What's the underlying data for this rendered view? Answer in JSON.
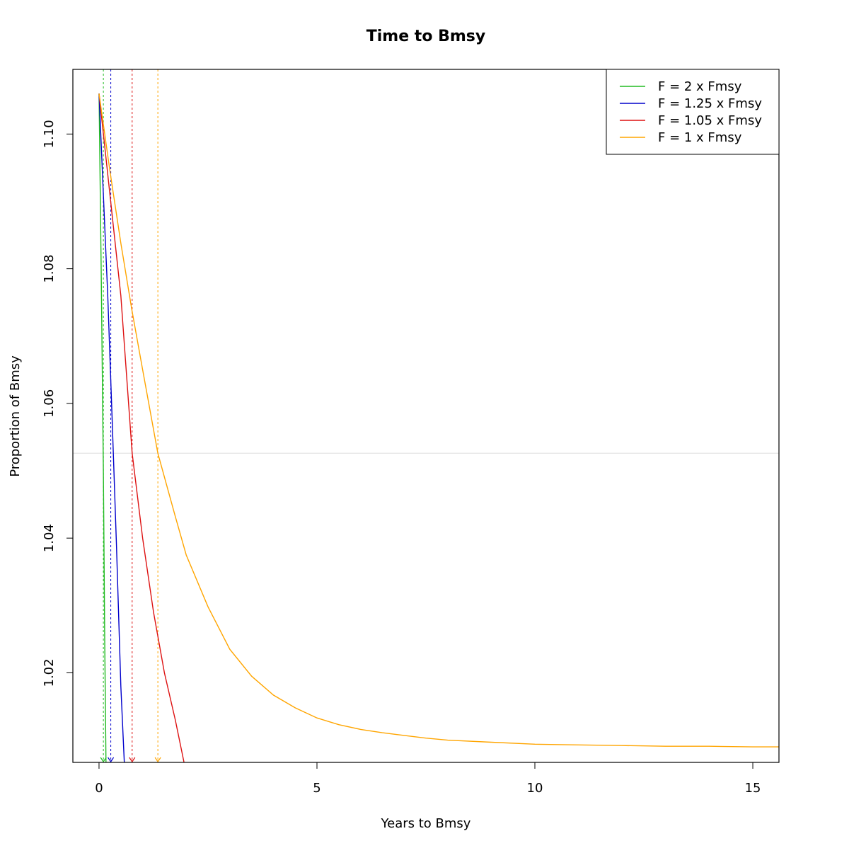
{
  "chart_data": {
    "type": "line",
    "title": "Time to Bmsy",
    "xlabel": "Years to Bmsy",
    "ylabel": "Proportion of Bmsy",
    "xlim": [
      -0.6,
      15.6
    ],
    "ylim": [
      1.0067,
      1.1096
    ],
    "xticks": [
      0,
      5,
      10,
      15
    ],
    "xtick_labels": [
      "0",
      "5",
      "10",
      "15"
    ],
    "yticks": [
      1.02,
      1.04,
      1.06,
      1.08,
      1.1
    ],
    "ytick_labels": [
      "1.02",
      "1.04",
      "1.06",
      "1.08",
      "1.10"
    ],
    "grid": false,
    "legend_position": "top-right",
    "reference_line": {
      "y": 1.0526,
      "color": "#dddddd"
    },
    "series": [
      {
        "name": "F = 2 x Fmsy",
        "color": "#22bb22",
        "x": [
          0.0,
          0.05,
          0.1,
          0.13,
          0.16
        ],
        "y": [
          1.106,
          1.08,
          1.05,
          1.025,
          1.0067
        ],
        "marker_x": 0.1
      },
      {
        "name": "F = 1.25 x Fmsy",
        "color": "#0000cc",
        "x": [
          0.0,
          0.1,
          0.2,
          0.3,
          0.4,
          0.5,
          0.58
        ],
        "y": [
          1.106,
          1.091,
          1.076,
          1.058,
          1.039,
          1.018,
          1.0067
        ],
        "marker_x": 0.27
      },
      {
        "name": "F = 1.05 x Fmsy",
        "color": "#dd1111",
        "x": [
          0.0,
          0.25,
          0.5,
          0.76,
          1.0,
          1.25,
          1.5,
          1.75,
          1.95
        ],
        "y": [
          1.106,
          1.091,
          1.076,
          1.0526,
          1.04,
          1.029,
          1.02,
          1.013,
          1.0067
        ],
        "marker_x": 0.76
      },
      {
        "name": "F = 1 x Fmsy",
        "color": "#ffa500",
        "x": [
          0.0,
          0.25,
          0.5,
          0.75,
          1.0,
          1.35,
          1.75,
          2.0,
          2.5,
          3.0,
          3.5,
          4.0,
          4.5,
          5.0,
          5.5,
          6.0,
          6.5,
          7.0,
          7.5,
          8.0,
          9.0,
          10.0,
          11.0,
          12.0,
          13.0,
          14.0,
          15.0,
          15.6
        ],
        "y": [
          1.106,
          1.0945,
          1.0838,
          1.074,
          1.065,
          1.0526,
          1.0432,
          1.0375,
          1.0298,
          1.0235,
          1.0195,
          1.0167,
          1.0148,
          1.0133,
          1.0123,
          1.0116,
          1.0111,
          1.0107,
          1.0103,
          1.01,
          1.0097,
          1.0094,
          1.0093,
          1.0092,
          1.0091,
          1.0091,
          1.009,
          1.009
        ],
        "marker_x": 1.35
      }
    ]
  }
}
